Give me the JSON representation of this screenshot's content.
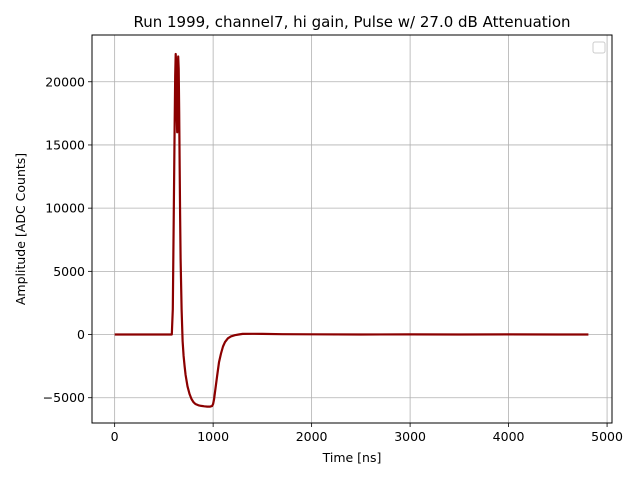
{
  "chart_data": {
    "type": "line",
    "title": "Run 1999, channel7, hi gain, Pulse w/ 27.0 dB Attenuation",
    "xlabel": "Time [ns]",
    "ylabel": "Amplitude [ADC Counts]",
    "xlim": [
      -230,
      5050
    ],
    "ylim": [
      -7000,
      23700
    ],
    "xticks": [
      0,
      1000,
      2000,
      3000,
      4000,
      5000
    ],
    "yticks": [
      -5000,
      0,
      5000,
      10000,
      15000,
      20000
    ],
    "xtick_labels": [
      "0",
      "1000",
      "2000",
      "3000",
      "4000",
      "5000"
    ],
    "ytick_labels": [
      "−5000",
      "0",
      "5000",
      "10000",
      "15000",
      "20000"
    ],
    "grid": true,
    "legend": "top-right (empty)",
    "series": [
      {
        "color": "#8b0000",
        "x": [
          0,
          100,
          200,
          300,
          400,
          500,
          580,
          590,
          600,
          610,
          615,
          620,
          625,
          630,
          635,
          640,
          645,
          650,
          655,
          660,
          665,
          670,
          680,
          690,
          700,
          710,
          720,
          740,
          760,
          780,
          800,
          820,
          850,
          880,
          910,
          940,
          970,
          990,
          1000,
          1010,
          1020,
          1040,
          1060,
          1080,
          1100,
          1120,
          1150,
          1180,
          1220,
          1260,
          1300,
          1400,
          1500,
          1700,
          2000,
          2500,
          3000,
          3500,
          4000,
          4500,
          4810
        ],
        "y": [
          0,
          0,
          0,
          0,
          0,
          0,
          0,
          2000,
          9000,
          17000,
          20500,
          22200,
          21500,
          17500,
          16000,
          19000,
          22000,
          21000,
          17500,
          13000,
          9500,
          6000,
          2000,
          -500,
          -1700,
          -2500,
          -3200,
          -4100,
          -4700,
          -5100,
          -5350,
          -5500,
          -5600,
          -5650,
          -5680,
          -5700,
          -5700,
          -5650,
          -5500,
          -5100,
          -4500,
          -3300,
          -2200,
          -1500,
          -950,
          -600,
          -300,
          -150,
          -50,
          0,
          50,
          60,
          50,
          30,
          20,
          0,
          10,
          0,
          10,
          0,
          0
        ]
      }
    ]
  }
}
